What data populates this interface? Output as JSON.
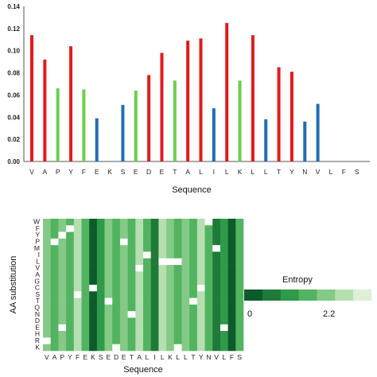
{
  "chart_data": [
    {
      "type": "bar",
      "xlabel": "Sequence",
      "ylabel": "",
      "ylim": [
        0,
        0.14
      ],
      "yticks": [
        "0.00",
        "0.02",
        "0.04",
        "0.06",
        "0.08",
        "0.10",
        "0.12",
        "0.14"
      ],
      "categories": [
        "V",
        "A",
        "P",
        "Y",
        "F",
        "E",
        "K",
        "S",
        "E",
        "D",
        "E",
        "T",
        "A",
        "L",
        "I",
        "L",
        "K",
        "L",
        "L",
        "T",
        "Y",
        "N",
        "V",
        "L",
        "F",
        "S"
      ],
      "values": [
        0.114,
        0.092,
        0.066,
        0.104,
        0.065,
        0.039,
        null,
        0.051,
        0.064,
        0.078,
        0.098,
        0.073,
        0.109,
        0.111,
        0.048,
        0.125,
        0.073,
        0.114,
        0.038,
        0.085,
        0.081,
        0.036,
        0.052,
        null,
        null,
        null
      ],
      "bar_colors": [
        "red",
        "red",
        "green",
        "red",
        "green",
        "blue",
        null,
        "blue",
        "green",
        "red",
        "red",
        "green",
        "red",
        "red",
        "blue",
        "red",
        "green",
        "red",
        "blue",
        "red",
        "red",
        "blue",
        "blue",
        null,
        null,
        null
      ],
      "palette": {
        "red": "#e31a1c",
        "green": "#6ccf4b",
        "blue": "#1f6fb4"
      },
      "grid": false
    },
    {
      "type": "heatmap",
      "xlabel": "Sequence",
      "ylabel": "AA substitution",
      "x_categories": [
        "V",
        "A",
        "P",
        "Y",
        "F",
        "E",
        "K",
        "S",
        "E",
        "D",
        "E",
        "T",
        "A",
        "L",
        "I",
        "L",
        "K",
        "L",
        "L",
        "T",
        "Y",
        "N",
        "V",
        "L",
        "F",
        "S"
      ],
      "y_categories": [
        "W",
        "F",
        "Y",
        "P",
        "M",
        "I",
        "L",
        "V",
        "A",
        "G",
        "C",
        "S",
        "T",
        "Q",
        "N",
        "D",
        "E",
        "H",
        "R",
        "K"
      ],
      "colorbar": {
        "label": "Entropy",
        "min_label": "0",
        "max_label": "2.2",
        "min": 0,
        "max": 2.2,
        "colors": [
          "#0d5a2a",
          "#1f7a3a",
          "#2f9a4a",
          "#52b360",
          "#84c986",
          "#b5dfb0",
          "#dcf0d6"
        ]
      },
      "column_values": [
        1.4,
        1.2,
        1.5,
        1.1,
        1.6,
        1.2,
        0.2,
        0.9,
        1.3,
        1.0,
        1.4,
        1.0,
        1.8,
        1.2,
        0.6,
        1.7,
        1.5,
        1.2,
        1.4,
        1.2,
        1.8,
        1.1,
        0.5,
        0.9,
        0.2,
        1.1
      ],
      "blank_cells": [
        [
          0,
          21
        ],
        [
          1,
          3
        ],
        [
          2,
          2
        ],
        [
          3,
          1
        ],
        [
          3,
          10
        ],
        [
          4,
          22
        ],
        [
          5,
          13
        ],
        [
          6,
          15
        ],
        [
          6,
          16
        ],
        [
          6,
          17
        ],
        [
          7,
          12
        ],
        [
          10,
          6
        ],
        [
          10,
          20
        ],
        [
          11,
          4
        ],
        [
          12,
          8
        ],
        [
          12,
          19
        ],
        [
          14,
          11
        ],
        [
          16,
          2
        ],
        [
          16,
          23
        ],
        [
          18,
          0
        ],
        [
          19,
          9
        ],
        [
          19,
          17
        ]
      ]
    }
  ]
}
